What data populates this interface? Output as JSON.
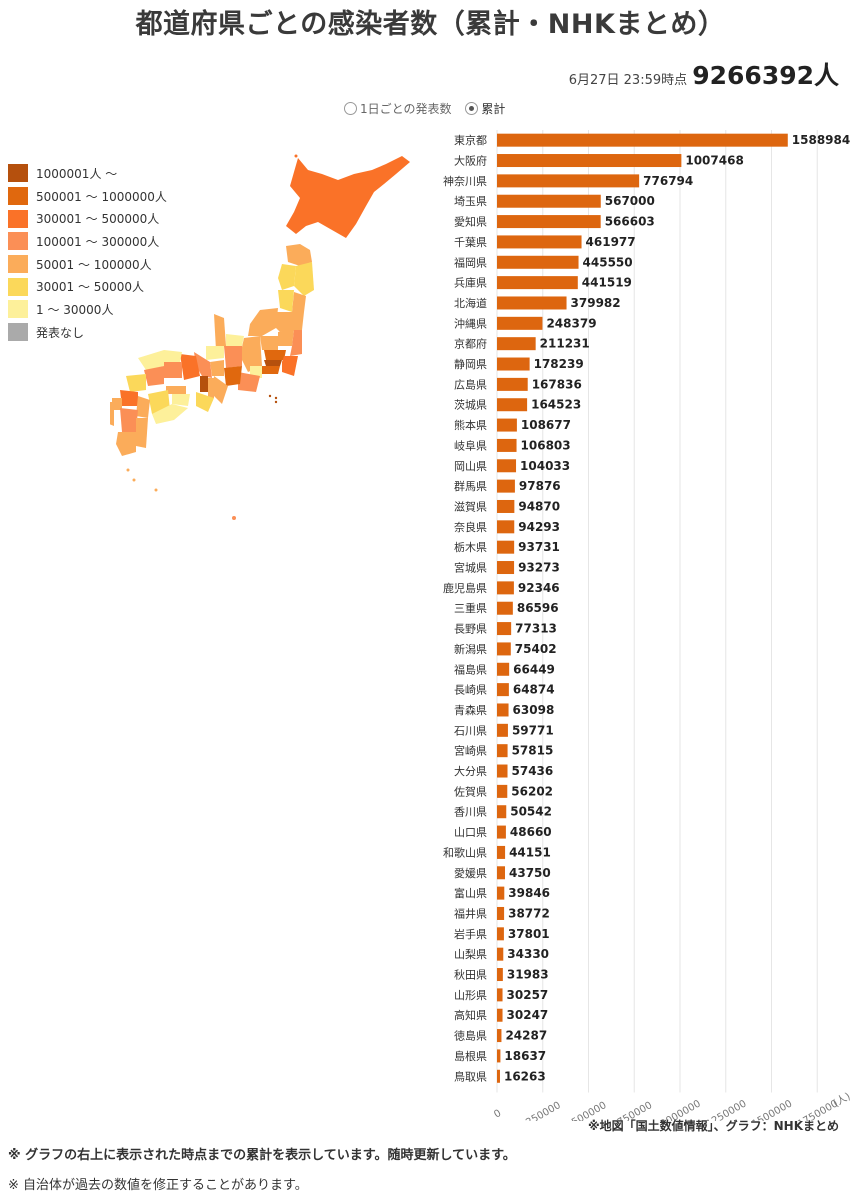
{
  "title": "都道府県ごとの感染者数（累計・NHKまとめ）",
  "timestamp": "6月27日 23:59時点",
  "total": "9266392人",
  "mode_options": [
    {
      "label": "1日ごとの発表数",
      "selected": false
    },
    {
      "label": "累計",
      "selected": true
    }
  ],
  "legend": [
    {
      "label": "1000001人 ～",
      "color": "#b5500d"
    },
    {
      "label": "500001 ～ 1000000人",
      "color": "#e0680e"
    },
    {
      "label": "300001 ～ 500000人",
      "color": "#fa7228"
    },
    {
      "label": "100001 ～ 300000人",
      "color": "#fb8f56"
    },
    {
      "label": "50001 ～ 100000人",
      "color": "#fbac5a"
    },
    {
      "label": "30001 ～ 50000人",
      "color": "#fbd85a"
    },
    {
      "label": "1 ～ 30000人",
      "color": "#fdf09a"
    },
    {
      "label": "発表なし",
      "color": "#aaaaaa"
    }
  ],
  "chart_data": {
    "type": "bar",
    "orientation": "horizontal",
    "bar_color": "#dd660f",
    "unit": "(人)",
    "xlim": [
      0,
      2000000
    ],
    "grid": true,
    "categories": [
      "東京都",
      "大阪府",
      "神奈川県",
      "埼玉県",
      "愛知県",
      "千葉県",
      "福岡県",
      "兵庫県",
      "北海道",
      "沖縄県",
      "京都府",
      "静岡県",
      "広島県",
      "茨城県",
      "熊本県",
      "岐阜県",
      "岡山県",
      "群馬県",
      "滋賀県",
      "奈良県",
      "栃木県",
      "宮城県",
      "鹿児島県",
      "三重県",
      "長野県",
      "新潟県",
      "福島県",
      "長崎県",
      "青森県",
      "石川県",
      "宮崎県",
      "大分県",
      "佐賀県",
      "香川県",
      "山口県",
      "和歌山県",
      "愛媛県",
      "富山県",
      "福井県",
      "岩手県",
      "山梨県",
      "秋田県",
      "山形県",
      "高知県",
      "徳島県",
      "島根県",
      "鳥取県"
    ],
    "values": [
      1588984,
      1007468,
      776794,
      567000,
      566603,
      461977,
      445550,
      441519,
      379982,
      248379,
      211231,
      178239,
      167836,
      164523,
      108677,
      106803,
      104033,
      97876,
      94870,
      94293,
      93731,
      93273,
      92346,
      86596,
      77313,
      75402,
      66449,
      64874,
      63098,
      59771,
      57815,
      57436,
      56202,
      50542,
      48660,
      44151,
      43750,
      39846,
      38772,
      37801,
      34330,
      31983,
      30257,
      30247,
      24287,
      18637,
      16263
    ],
    "x_ticks": [
      "0",
      "250000",
      "500000",
      "750000",
      "1000000",
      "1250000",
      "1500000",
      "1750000"
    ]
  },
  "notes": {
    "source": "※地図「国土数値情報」、グラフ：NHKまとめ",
    "note1": "※ グラフの右上に表示された時点までの累計を表示しています。随時更新しています。",
    "note2": "※ 自治体が過去の数値を修正することがあります。"
  }
}
